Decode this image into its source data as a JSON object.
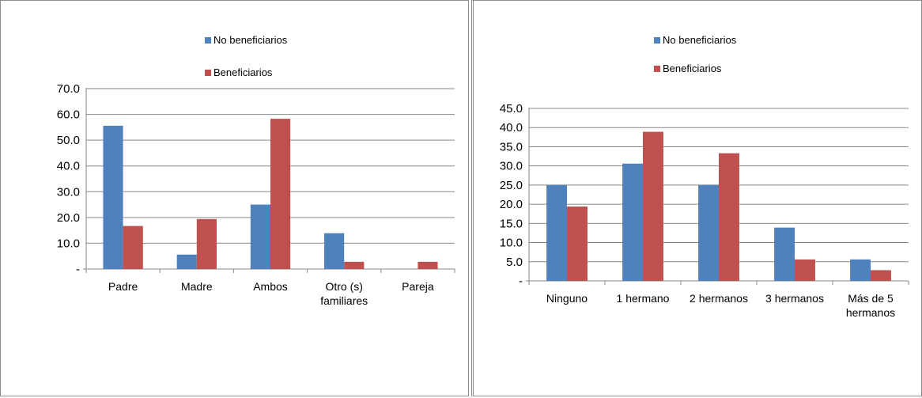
{
  "chart_data": [
    {
      "type": "bar",
      "categories": [
        [
          "Padre"
        ],
        [
          "Madre"
        ],
        [
          "Ambos"
        ],
        [
          "Otro (s)",
          "familiares"
        ],
        [
          "Pareja"
        ]
      ],
      "series": [
        {
          "name": "No beneficiarios",
          "color": "#4f81bd",
          "values": [
            55.6,
            5.6,
            25.0,
            13.9,
            0
          ]
        },
        {
          "name": "Beneficiarios",
          "color": "#c0504d",
          "values": [
            16.7,
            19.4,
            58.3,
            2.8,
            2.8
          ]
        }
      ],
      "yticks": [
        "-",
        "10.0",
        "20.0",
        "30.0",
        "40.0",
        "50.0",
        "60.0",
        "70.0"
      ],
      "ylim": [
        0,
        70
      ],
      "grid": true,
      "legend": "top-center"
    },
    {
      "type": "bar",
      "categories": [
        [
          "Ninguno"
        ],
        [
          "1 hermano"
        ],
        [
          "2 hermanos"
        ],
        [
          "3 hermanos"
        ],
        [
          "Más de 5",
          "hermanos"
        ]
      ],
      "series": [
        {
          "name": "No beneficiarios",
          "color": "#4f81bd",
          "values": [
            25.0,
            30.6,
            25.0,
            13.9,
            5.6
          ]
        },
        {
          "name": "Beneficiarios",
          "color": "#c0504d",
          "values": [
            19.4,
            38.9,
            33.3,
            5.6,
            2.8
          ]
        }
      ],
      "yticks": [
        "-",
        "5.0",
        "10.0",
        "15.0",
        "20.0",
        "25.0",
        "30.0",
        "35.0",
        "40.0",
        "45.0"
      ],
      "ylim": [
        0,
        45
      ],
      "grid": true,
      "legend": "top-center"
    }
  ]
}
